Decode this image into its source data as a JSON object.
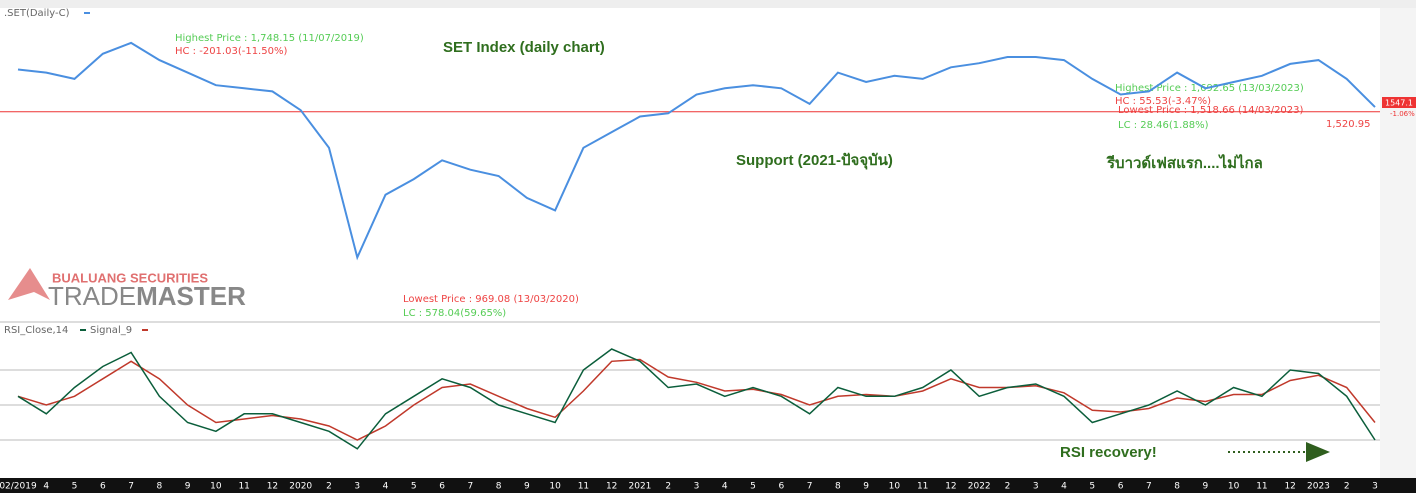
{
  "chart_data": [
    {
      "type": "line",
      "header": ".SET(Daily-C)",
      "title": "SET Index (daily chart)",
      "categories": [
        "02/2019",
        "4",
        "5",
        "6",
        "7",
        "8",
        "9",
        "10",
        "11",
        "12",
        "2020",
        "2",
        "3",
        "4",
        "5",
        "6",
        "7",
        "8",
        "9",
        "10",
        "11",
        "12",
        "2021",
        "2",
        "3",
        "4",
        "5",
        "6",
        "7",
        "8",
        "9",
        "10",
        "11",
        "12",
        "2022",
        "2",
        "3",
        "4",
        "5",
        "6",
        "7",
        "8",
        "9",
        "10",
        "11",
        "12",
        "2023",
        "2",
        "3"
      ],
      "series": [
        {
          "name": ".SET",
          "color": "#4a8fe0",
          "values": [
            1650,
            1640,
            1620,
            1700,
            1735,
            1680,
            1640,
            1600,
            1590,
            1580,
            1520,
            1400,
            1050,
            1250,
            1300,
            1360,
            1330,
            1310,
            1240,
            1200,
            1400,
            1450,
            1500,
            1510,
            1570,
            1590,
            1600,
            1590,
            1540,
            1640,
            1610,
            1630,
            1620,
            1657,
            1670,
            1690,
            1690,
            1680,
            1620,
            1570,
            1580,
            1640,
            1590,
            1610,
            1630,
            1668,
            1680,
            1620,
            1530
          ]
        }
      ],
      "ylim": [
        850,
        1840
      ],
      "hlines": [
        1515
      ],
      "annotations": [
        "Highest Price : 1,748.15 (11/07/2019)",
        "HC : -201.03(-11.50%)",
        "Lowest Price : 969.08 (13/03/2020)",
        "LC : 578.04(59.65%)",
        "Highest Price : 1,692.65 (13/03/2023)",
        "HC : 55.53(-3.47%)",
        "Lowest Price : 1,518.66 (14/03/2023)",
        "LC : 28.46(1.88%)",
        "1,520.95",
        "1547.1",
        "-1.06%",
        "Support (2021-ปัจจุบัน)",
        "รีบาวด์เฟสแรก....ไม่ไกล",
        "BUALUANG SECURITIES",
        "TRADE",
        "MASTER"
      ]
    },
    {
      "type": "line",
      "header": "RSI_Close,14",
      "series": [
        {
          "name": "Signal_9",
          "color": "#c0392b",
          "values": [
            55,
            50,
            55,
            65,
            75,
            65,
            50,
            40,
            42,
            44,
            42,
            38,
            30,
            38,
            50,
            60,
            62,
            55,
            48,
            43,
            58,
            75,
            76,
            66,
            63,
            58,
            59,
            56,
            50,
            55,
            56,
            55,
            58,
            65,
            60,
            60,
            61,
            57,
            47,
            46,
            48,
            54,
            52,
            56,
            56,
            64,
            67,
            60,
            40
          ]
        },
        {
          "name": "RSI",
          "color": "#0b5e3b",
          "values": [
            55,
            45,
            60,
            72,
            80,
            55,
            40,
            35,
            45,
            45,
            40,
            35,
            25,
            45,
            55,
            65,
            60,
            50,
            45,
            40,
            70,
            82,
            75,
            60,
            62,
            55,
            60,
            55,
            45,
            60,
            55,
            55,
            60,
            70,
            55,
            60,
            62,
            55,
            40,
            45,
            50,
            58,
            50,
            60,
            55,
            70,
            68,
            55,
            30
          ]
        }
      ],
      "ylim": [
        10,
        90
      ],
      "hlines": [
        30,
        50,
        70
      ],
      "annotations": [
        "RSI recovery!"
      ]
    }
  ]
}
